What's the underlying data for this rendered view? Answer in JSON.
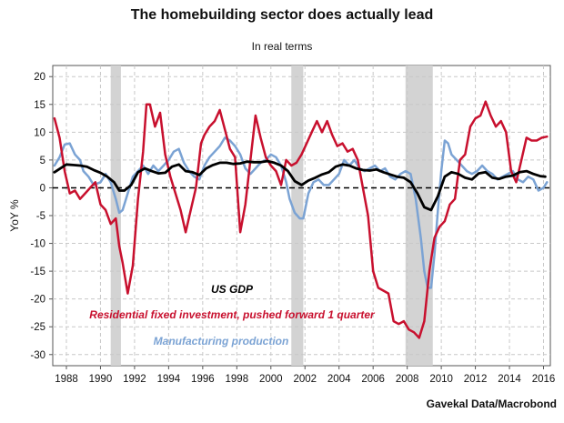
{
  "title": "The homebuilding sector does actually lead",
  "subtitle": "In real terms",
  "source": "Gavekal Data/Macrobond",
  "colors": {
    "gdp": "#000000",
    "residential": "#c8102e",
    "manufacturing": "#7ba3d4",
    "recession": "#d3d3d3",
    "grid": "#c8c8c8"
  },
  "chart_data": {
    "type": "line",
    "title": "The homebuilding sector does actually lead",
    "subtitle": "In real terms",
    "ylabel": "YoY %",
    "xlabel": "",
    "xlim": [
      1987.2,
      2016.4
    ],
    "ylim": [
      -32,
      22
    ],
    "yticks": [
      20,
      15,
      10,
      5,
      0,
      -5,
      -10,
      -15,
      -20,
      -25,
      -30
    ],
    "xticks": [
      1988,
      1990,
      1992,
      1994,
      1996,
      1998,
      2000,
      2002,
      2004,
      2006,
      2008,
      2010,
      2012,
      2014,
      2016
    ],
    "grid": true,
    "zero_line": "dashed",
    "recessions": [
      [
        1990.6,
        1991.2
      ],
      [
        2001.2,
        2001.9
      ],
      [
        2007.9,
        2009.5
      ]
    ],
    "annotations": [
      {
        "text": "US GDP",
        "series": "gdp"
      },
      {
        "text": "Residential fixed investment, pushed forward 1 quarter",
        "series": "residential"
      },
      {
        "text": "Manufacturing production",
        "series": "manufacturing"
      }
    ],
    "series": [
      {
        "name": "Manufacturing production",
        "key": "manufacturing",
        "x": [
          1987.3,
          1987.6,
          1987.9,
          1988.2,
          1988.5,
          1988.8,
          1989.0,
          1989.3,
          1989.6,
          1990.0,
          1990.3,
          1990.6,
          1990.9,
          1991.1,
          1991.3,
          1991.6,
          1991.9,
          1992.2,
          1992.5,
          1992.8,
          1993.1,
          1993.4,
          1993.7,
          1994.0,
          1994.3,
          1994.6,
          1994.9,
          1995.2,
          1995.5,
          1995.8,
          1996.1,
          1996.4,
          1996.7,
          1997.0,
          1997.3,
          1997.6,
          1997.9,
          1998.2,
          1998.5,
          1998.8,
          1999.1,
          1999.4,
          1999.7,
          2000.0,
          2000.3,
          2000.6,
          2000.9,
          2001.1,
          2001.4,
          2001.7,
          2001.9,
          2002.2,
          2002.5,
          2002.8,
          2003.1,
          2003.4,
          2003.7,
          2004.0,
          2004.3,
          2004.6,
          2004.9,
          2005.2,
          2005.5,
          2005.8,
          2006.1,
          2006.4,
          2006.7,
          2007.0,
          2007.3,
          2007.6,
          2007.9,
          2008.2,
          2008.5,
          2008.8,
          2009.0,
          2009.2,
          2009.4,
          2009.6,
          2009.8,
          2010.0,
          2010.2,
          2010.4,
          2010.6,
          2010.9,
          2011.2,
          2011.5,
          2011.8,
          2012.1,
          2012.4,
          2012.7,
          2013.0,
          2013.3,
          2013.6,
          2013.9,
          2014.2,
          2014.5,
          2014.8,
          2015.1,
          2015.4,
          2015.7,
          2016.0,
          2016.2
        ],
        "y": [
          4.0,
          5.5,
          7.8,
          8.0,
          6.0,
          5.0,
          3.0,
          2.0,
          0.5,
          1.0,
          2.5,
          1.0,
          -2.0,
          -4.5,
          -4.0,
          -1.0,
          2.0,
          3.0,
          4.0,
          2.5,
          4.0,
          3.0,
          4.0,
          5.0,
          6.5,
          7.0,
          4.5,
          3.0,
          2.0,
          1.5,
          4.0,
          5.5,
          6.5,
          7.5,
          9.0,
          8.5,
          7.5,
          6.0,
          3.5,
          2.5,
          3.5,
          4.5,
          5.0,
          6.0,
          5.5,
          4.0,
          1.0,
          -2.0,
          -4.5,
          -5.5,
          -5.5,
          -1.0,
          1.0,
          1.5,
          0.5,
          0.5,
          1.5,
          2.5,
          5.0,
          4.0,
          5.0,
          3.5,
          3.0,
          3.5,
          4.0,
          3.0,
          3.5,
          2.0,
          1.5,
          2.5,
          3.0,
          2.5,
          -2.0,
          -9.0,
          -15.0,
          -18.0,
          -18.0,
          -12.0,
          -4.0,
          3.0,
          8.5,
          8.0,
          6.0,
          5.0,
          4.0,
          3.0,
          2.5,
          3.0,
          4.0,
          3.0,
          2.5,
          1.5,
          2.0,
          2.5,
          3.0,
          1.5,
          1.0,
          2.0,
          1.5,
          -0.5,
          0.0,
          1.0
        ]
      },
      {
        "name": "Residential fixed investment, pushed forward 1 quarter",
        "key": "residential",
        "x": [
          1987.3,
          1987.6,
          1987.9,
          1988.2,
          1988.5,
          1988.8,
          1989.1,
          1989.4,
          1989.7,
          1990.0,
          1990.3,
          1990.6,
          1990.9,
          1991.1,
          1991.3,
          1991.6,
          1991.9,
          1992.2,
          1992.5,
          1992.7,
          1992.9,
          1993.2,
          1993.5,
          1993.8,
          1994.1,
          1994.4,
          1994.7,
          1995.0,
          1995.3,
          1995.6,
          1995.9,
          1996.1,
          1996.4,
          1996.7,
          1997.0,
          1997.3,
          1997.6,
          1997.9,
          1998.2,
          1998.5,
          1998.8,
          1999.1,
          1999.4,
          1999.7,
          2000.0,
          2000.3,
          2000.6,
          2000.9,
          2001.2,
          2001.5,
          2001.8,
          2002.1,
          2002.4,
          2002.7,
          2003.0,
          2003.3,
          2003.6,
          2003.9,
          2004.2,
          2004.5,
          2004.8,
          2005.1,
          2005.4,
          2005.7,
          2006.0,
          2006.3,
          2006.6,
          2006.9,
          2007.2,
          2007.5,
          2007.8,
          2008.1,
          2008.4,
          2008.7,
          2009.0,
          2009.3,
          2009.6,
          2009.9,
          2010.2,
          2010.5,
          2010.8,
          2011.1,
          2011.4,
          2011.7,
          2012.0,
          2012.3,
          2012.6,
          2012.9,
          2013.2,
          2013.5,
          2013.8,
          2014.1,
          2014.4,
          2014.7,
          2015.0,
          2015.3,
          2015.6,
          2015.9,
          2016.2
        ],
        "y": [
          12.5,
          9.0,
          3.0,
          -1.0,
          -0.5,
          -2.0,
          -1.0,
          0.0,
          1.0,
          -3.0,
          -4.0,
          -6.5,
          -5.5,
          -10.5,
          -13.5,
          -19.0,
          -14.0,
          -2.0,
          6.5,
          15.0,
          15.0,
          11.0,
          13.5,
          6.0,
          2.0,
          -1.0,
          -4.0,
          -8.0,
          -4.0,
          0.0,
          8.0,
          9.5,
          11.0,
          12.0,
          14.0,
          10.5,
          7.0,
          5.5,
          -8.0,
          -3.0,
          5.0,
          13.0,
          9.0,
          5.5,
          4.0,
          3.0,
          0.5,
          5.0,
          4.0,
          4.5,
          6.0,
          8.0,
          10.0,
          12.0,
          10.0,
          12.0,
          9.5,
          7.5,
          8.0,
          6.5,
          7.0,
          5.0,
          0.0,
          -5.0,
          -15.0,
          -18.0,
          -18.5,
          -19.0,
          -24.0,
          -24.5,
          -24.0,
          -25.5,
          -26.0,
          -27.0,
          -24.0,
          -15.0,
          -9.0,
          -7.0,
          -6.0,
          -3.0,
          -2.0,
          5.0,
          6.0,
          11.0,
          12.5,
          13.0,
          15.5,
          13.0,
          11.0,
          12.0,
          10.0,
          3.0,
          1.0,
          5.0,
          9.0,
          8.5,
          8.5,
          9.0,
          9.2
        ]
      },
      {
        "name": "US GDP",
        "key": "gdp",
        "x": [
          1987.3,
          1987.7,
          1988.0,
          1988.4,
          1988.8,
          1989.2,
          1989.6,
          1990.0,
          1990.4,
          1990.8,
          1991.1,
          1991.4,
          1991.8,
          1992.2,
          1992.6,
          1993.0,
          1993.4,
          1993.8,
          1994.2,
          1994.6,
          1995.0,
          1995.4,
          1995.8,
          1996.2,
          1996.6,
          1997.0,
          1997.4,
          1997.8,
          1998.2,
          1998.6,
          1999.0,
          1999.4,
          1999.8,
          2000.2,
          2000.6,
          2001.0,
          2001.4,
          2001.8,
          2002.2,
          2002.6,
          2003.0,
          2003.4,
          2003.8,
          2004.2,
          2004.6,
          2005.0,
          2005.4,
          2005.8,
          2006.2,
          2006.6,
          2007.0,
          2007.4,
          2007.8,
          2008.2,
          2008.6,
          2009.0,
          2009.4,
          2009.8,
          2010.2,
          2010.6,
          2011.0,
          2011.4,
          2011.8,
          2012.2,
          2012.6,
          2013.0,
          2013.4,
          2013.8,
          2014.2,
          2014.6,
          2015.0,
          2015.4,
          2015.8,
          2016.1
        ],
        "y": [
          2.8,
          3.6,
          4.2,
          4.1,
          4.0,
          3.8,
          3.2,
          2.7,
          2.0,
          1.0,
          -0.5,
          -0.5,
          0.5,
          2.8,
          3.5,
          3.0,
          2.6,
          2.7,
          3.8,
          4.2,
          3.0,
          2.8,
          2.3,
          3.5,
          4.1,
          4.5,
          4.5,
          4.3,
          4.4,
          4.7,
          4.6,
          4.6,
          4.8,
          4.5,
          4.0,
          3.0,
          1.2,
          0.5,
          1.3,
          1.8,
          2.4,
          2.8,
          3.8,
          4.2,
          4.0,
          3.5,
          3.2,
          3.1,
          3.3,
          2.8,
          2.4,
          2.0,
          1.8,
          1.0,
          -1.0,
          -3.5,
          -4.0,
          -1.5,
          2.0,
          2.8,
          2.5,
          1.8,
          1.5,
          2.6,
          2.8,
          1.8,
          1.6,
          2.0,
          2.2,
          2.8,
          3.0,
          2.5,
          2.1,
          2.0
        ]
      }
    ]
  }
}
